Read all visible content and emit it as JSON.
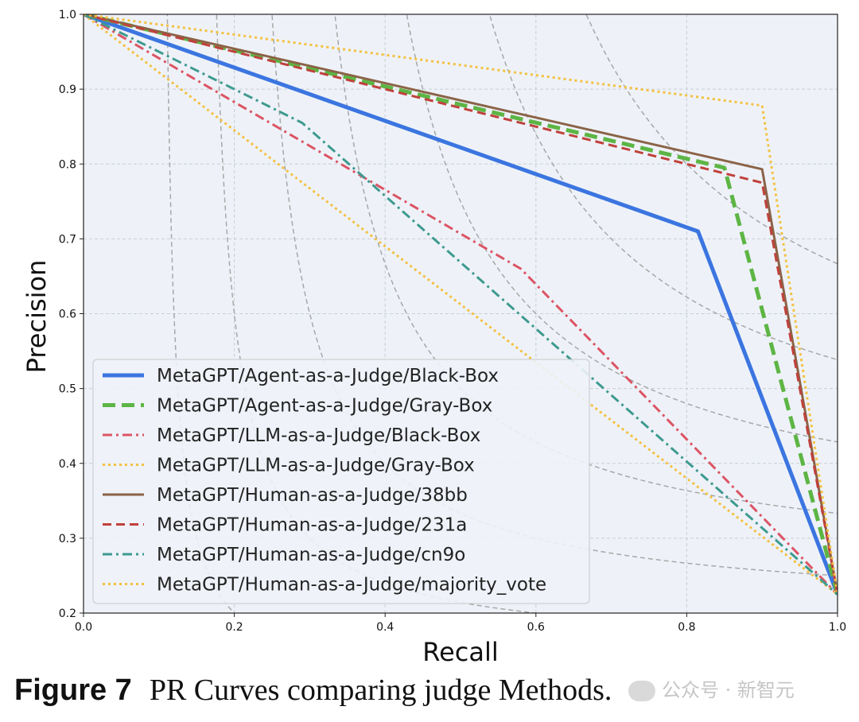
{
  "chart_data": {
    "type": "line",
    "xlabel": "Recall",
    "ylabel": "Precision",
    "xlim": [
      0.0,
      1.0
    ],
    "ylim": [
      0.2,
      1.0
    ],
    "xticks": [
      "0.0",
      "0.2",
      "0.4",
      "0.6",
      "0.8",
      "1.0"
    ],
    "yticks": [
      "0.2",
      "0.3",
      "0.4",
      "0.5",
      "0.6",
      "0.7",
      "0.8",
      "0.9",
      "1.0"
    ],
    "grid": true,
    "legend_position": "lower-left",
    "iso_f1_curves": true,
    "series": [
      {
        "name": "MetaGPT/Agent-as-a-Judge/Black-Box",
        "color": "#3b75e0",
        "style": "solid-thick",
        "x": [
          0.0,
          0.815,
          1.0
        ],
        "y": [
          1.0,
          0.71,
          0.225
        ]
      },
      {
        "name": "MetaGPT/Agent-as-a-Judge/Gray-Box",
        "color": "#5db544",
        "style": "dashed-thick",
        "x": [
          0.0,
          0.85,
          1.0
        ],
        "y": [
          1.0,
          0.795,
          0.225
        ]
      },
      {
        "name": "MetaGPT/LLM-as-a-Judge/Black-Box",
        "color": "#dc5565",
        "style": "dashdot",
        "x": [
          0.0,
          0.29,
          0.58,
          1.0
        ],
        "y": [
          1.0,
          0.83,
          0.66,
          0.225
        ]
      },
      {
        "name": "MetaGPT/LLM-as-a-Judge/Gray-Box",
        "color": "#f5c042",
        "style": "dotted",
        "x": [
          0.0,
          1.0
        ],
        "y": [
          1.0,
          0.225
        ]
      },
      {
        "name": "MetaGPT/Human-as-a-Judge/38bb",
        "color": "#8b6347",
        "style": "solid",
        "x": [
          0.0,
          0.9,
          1.0
        ],
        "y": [
          1.0,
          0.793,
          0.225
        ]
      },
      {
        "name": "MetaGPT/Human-as-a-Judge/231a",
        "color": "#c0413c",
        "style": "dashed",
        "x": [
          0.0,
          0.9,
          1.0
        ],
        "y": [
          1.0,
          0.775,
          0.225
        ]
      },
      {
        "name": "MetaGPT/Human-as-a-Judge/cn9o",
        "color": "#3e9a8f",
        "style": "dashdot",
        "x": [
          0.0,
          0.29,
          1.0
        ],
        "y": [
          1.0,
          0.855,
          0.225
        ]
      },
      {
        "name": "MetaGPT/Human-as-a-Judge/majority_vote",
        "color": "#f5c042",
        "style": "dotted",
        "x": [
          0.0,
          0.9,
          1.0
        ],
        "y": [
          1.0,
          0.878,
          0.225
        ]
      }
    ]
  },
  "caption": {
    "label": "Figure 7",
    "text": "PR Curves comparing judge Methods."
  },
  "watermark": {
    "text": "公众号 · 新智元"
  }
}
